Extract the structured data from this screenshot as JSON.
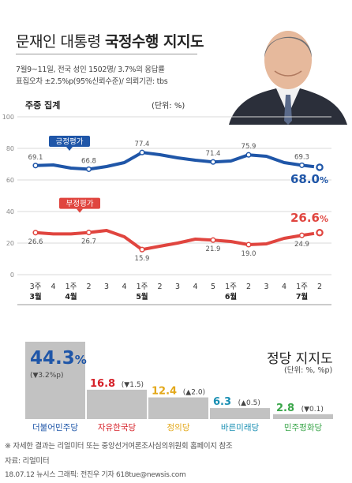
{
  "header": {
    "title_plain": "문재인 대통령 ",
    "title_bold": "국정수행 지지도",
    "line1": "7월9~11일, 전국 성인 1502명/ 3.7%의 응답률",
    "line2": "표집오차 ±2.5%p(95%신뢰수준)/ 의뢰기관: tbs",
    "accent_color": "#1f56a8"
  },
  "chart_data": [
    {
      "type": "line",
      "title": "주중 집계",
      "unit": "(단위: %)",
      "ylim": [
        0,
        100
      ],
      "yticks": [
        "0",
        "20",
        "40",
        "60",
        "80",
        "100"
      ],
      "grid": true,
      "x_week": [
        "3주",
        "4",
        "1주",
        "2",
        "3",
        "4",
        "1주",
        "2",
        "3",
        "4",
        "5",
        "1주",
        "2",
        "3",
        "4",
        "1주",
        "2"
      ],
      "x_month": [
        {
          "index": 0,
          "label": "3월"
        },
        {
          "index": 2,
          "label": "4월"
        },
        {
          "index": 6,
          "label": "5월"
        },
        {
          "index": 11,
          "label": "6월"
        },
        {
          "index": 15,
          "label": "7월"
        }
      ],
      "series": [
        {
          "name": "긍정평가",
          "color": "#1f56a8",
          "values": [
            69.1,
            69.5,
            67.5,
            66.8,
            68.5,
            71.0,
            77.4,
            76.0,
            74.0,
            72.5,
            71.4,
            72.0,
            75.9,
            75.0,
            71.0,
            69.3,
            68.0
          ],
          "labels": [
            "69.1",
            "",
            "",
            "66.8",
            "",
            "",
            "77.4",
            "",
            "",
            "",
            "71.4",
            "",
            "75.9",
            "",
            "",
            "69.3",
            "68.0%"
          ]
        },
        {
          "name": "부정평가",
          "color": "#e0453f",
          "values": [
            26.6,
            25.8,
            25.8,
            26.7,
            28.0,
            24.0,
            15.9,
            18.0,
            20.0,
            22.5,
            21.9,
            21.0,
            19.0,
            19.5,
            23.0,
            24.9,
            26.6
          ],
          "labels": [
            "26.6",
            "",
            "",
            "26.7",
            "",
            "",
            "15.9",
            "",
            "",
            "",
            "21.9",
            "",
            "19.0",
            "",
            "",
            "24.9",
            "26.6%"
          ]
        }
      ]
    },
    {
      "type": "bar",
      "title": "정당 지지도",
      "unit": "(단위: %, %p)",
      "categories": [
        "더불어민주당",
        "자유한국당",
        "정의당",
        "바른미래당",
        "민주평화당"
      ],
      "values": [
        44.3,
        16.8,
        12.4,
        6.3,
        2.8
      ],
      "changes": [
        "(▼3.2%p)",
        "(▼1.5)",
        "(▲2.0)",
        "(▲0.5)",
        "(▼0.1)"
      ],
      "value_labels": [
        "44.3%",
        "16.8",
        "12.4",
        "6.3",
        "2.8"
      ],
      "colors": [
        "#1f56a8",
        "#d6222a",
        "#e3a81a",
        "#1a8fb3",
        "#3aa64a"
      ]
    }
  ],
  "footer": {
    "note": "※ 자세한 결과는 리얼미터 또는 중앙선거여론조사심의위원회 홈페이지 참조",
    "source": "자료: 리얼미터",
    "credit": "18.07.12 뉴시스 그래픽: 전진우 기자 618tue@newsis.com"
  }
}
